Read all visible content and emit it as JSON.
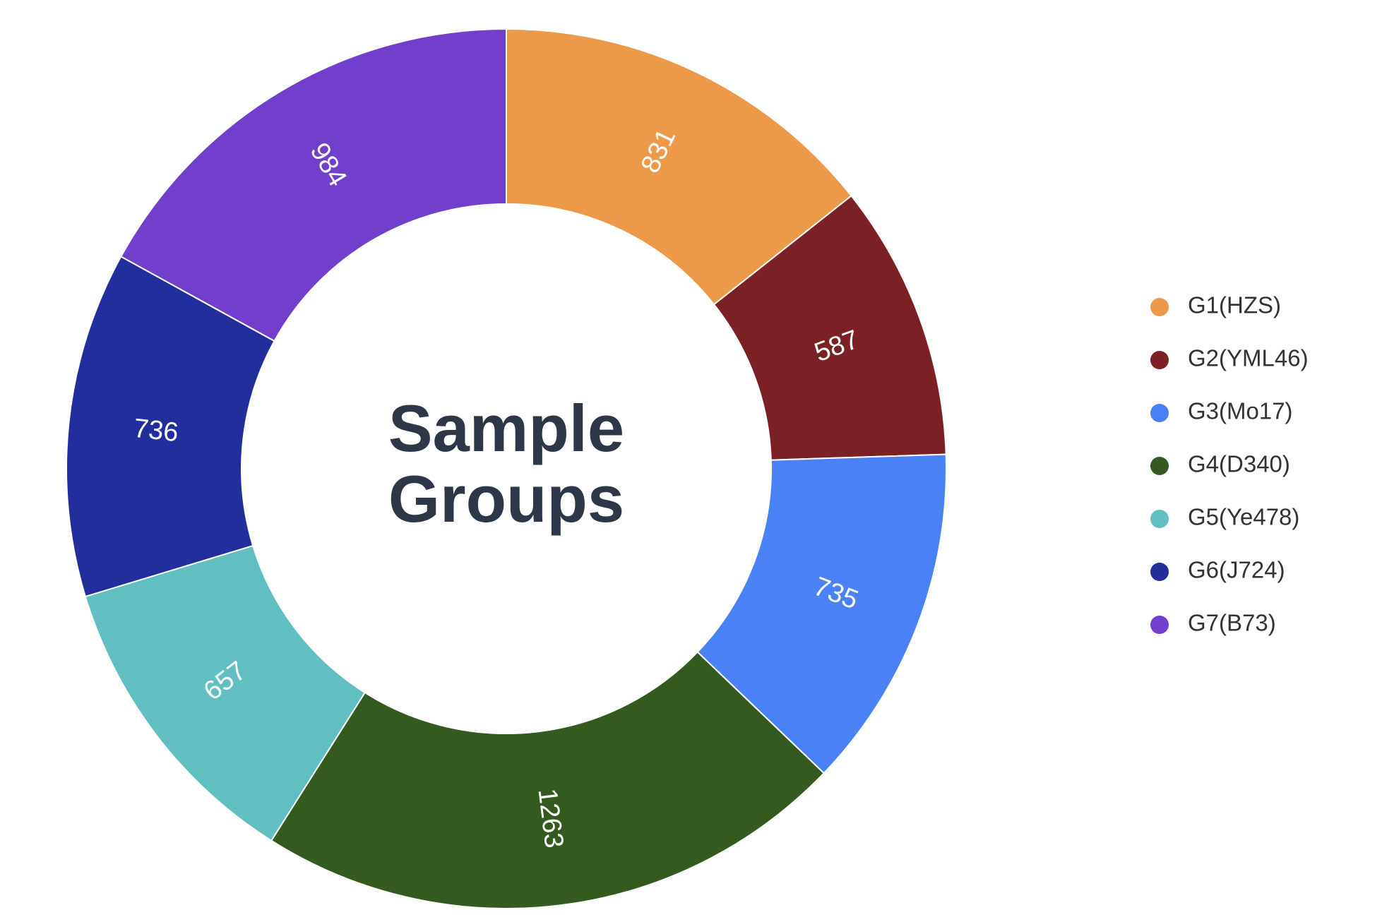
{
  "chart_data": {
    "type": "donut",
    "center_text": [
      "Sample",
      "Groups"
    ],
    "categories": [
      "G1(HZS)",
      "G2(YML46)",
      "G3(Mo17)",
      "G4(D340)",
      "G5(Ye478)",
      "G6(J724)",
      "G7(B73)"
    ],
    "values": [
      831,
      587,
      735,
      1263,
      657,
      736,
      984
    ],
    "colors": [
      "#ec9a4a",
      "#7b2125",
      "#4a82f5",
      "#345a20",
      "#62bfc1",
      "#222e9c",
      "#713fcc"
    ],
    "legend": "right"
  }
}
